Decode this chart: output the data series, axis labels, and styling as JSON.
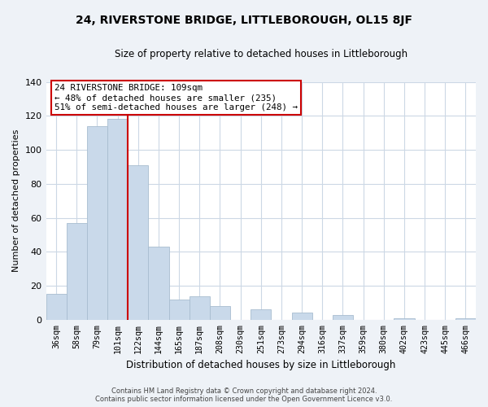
{
  "title": "24, RIVERSTONE BRIDGE, LITTLEBOROUGH, OL15 8JF",
  "subtitle": "Size of property relative to detached houses in Littleborough",
  "xlabel": "Distribution of detached houses by size in Littleborough",
  "ylabel": "Number of detached properties",
  "bar_labels": [
    "36sqm",
    "58sqm",
    "79sqm",
    "101sqm",
    "122sqm",
    "144sqm",
    "165sqm",
    "187sqm",
    "208sqm",
    "230sqm",
    "251sqm",
    "273sqm",
    "294sqm",
    "316sqm",
    "337sqm",
    "359sqm",
    "380sqm",
    "402sqm",
    "423sqm",
    "445sqm",
    "466sqm"
  ],
  "bar_values": [
    15,
    57,
    114,
    118,
    91,
    43,
    12,
    14,
    8,
    0,
    6,
    0,
    4,
    0,
    3,
    0,
    0,
    1,
    0,
    0,
    1
  ],
  "bar_color": "#c9d9ea",
  "bar_edge_color": "#a8bdd0",
  "vline_x": 3.5,
  "vline_color": "#cc0000",
  "ylim": [
    0,
    140
  ],
  "yticks": [
    0,
    20,
    40,
    60,
    80,
    100,
    120,
    140
  ],
  "annotation_title": "24 RIVERSTONE BRIDGE: 109sqm",
  "annotation_line1": "← 48% of detached houses are smaller (235)",
  "annotation_line2": "51% of semi-detached houses are larger (248) →",
  "annotation_box_color": "#ffffff",
  "annotation_box_edge": "#cc0000",
  "footer_line1": "Contains HM Land Registry data © Crown copyright and database right 2024.",
  "footer_line2": "Contains public sector information licensed under the Open Government Licence v3.0.",
  "background_color": "#eef2f7",
  "plot_bg_color": "#ffffff",
  "grid_color": "#ccd8e5"
}
